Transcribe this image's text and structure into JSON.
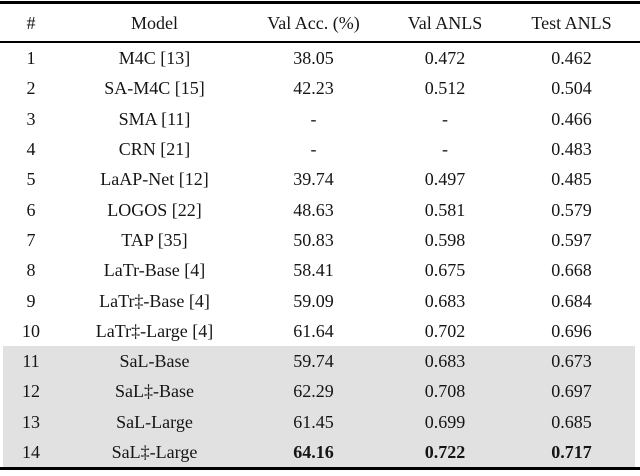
{
  "table": {
    "columns": [
      "#",
      "Model",
      "Val Acc. (%)",
      "Val ANLS",
      "Test ANLS"
    ],
    "rows": [
      {
        "num": "1",
        "model": "M4C [13]",
        "val_acc": "38.05",
        "val_anls": "0.472",
        "test_anls": "0.462",
        "highlight": false,
        "bold_values": false
      },
      {
        "num": "2",
        "model": "SA-M4C [15]",
        "val_acc": "42.23",
        "val_anls": "0.512",
        "test_anls": "0.504",
        "highlight": false,
        "bold_values": false
      },
      {
        "num": "3",
        "model": "SMA [11]",
        "val_acc": "-",
        "val_anls": "-",
        "test_anls": "0.466",
        "highlight": false,
        "bold_values": false
      },
      {
        "num": "4",
        "model": "CRN [21]",
        "val_acc": "-",
        "val_anls": "-",
        "test_anls": "0.483",
        "highlight": false,
        "bold_values": false
      },
      {
        "num": "5",
        "model": "LaAP-Net [12]",
        "val_acc": "39.74",
        "val_anls": "0.497",
        "test_anls": "0.485",
        "highlight": false,
        "bold_values": false
      },
      {
        "num": "6",
        "model": "LOGOS [22]",
        "val_acc": "48.63",
        "val_anls": "0.581",
        "test_anls": "0.579",
        "highlight": false,
        "bold_values": false
      },
      {
        "num": "7",
        "model": "TAP [35]",
        "val_acc": "50.83",
        "val_anls": "0.598",
        "test_anls": "0.597",
        "highlight": false,
        "bold_values": false
      },
      {
        "num": "8",
        "model": "LaTr-Base [4]",
        "val_acc": "58.41",
        "val_anls": "0.675",
        "test_anls": "0.668",
        "highlight": false,
        "bold_values": false
      },
      {
        "num": "9",
        "model": "LaTr‡-Base [4]",
        "val_acc": "59.09",
        "val_anls": "0.683",
        "test_anls": "0.684",
        "highlight": false,
        "bold_values": false
      },
      {
        "num": "10",
        "model": "LaTr‡-Large [4]",
        "val_acc": "61.64",
        "val_anls": "0.702",
        "test_anls": "0.696",
        "highlight": false,
        "bold_values": false
      },
      {
        "num": "11",
        "model": "SaL-Base",
        "val_acc": "59.74",
        "val_anls": "0.683",
        "test_anls": "0.673",
        "highlight": true,
        "bold_values": false
      },
      {
        "num": "12",
        "model": "SaL‡-Base",
        "val_acc": "62.29",
        "val_anls": "0.708",
        "test_anls": "0.697",
        "highlight": true,
        "bold_values": false
      },
      {
        "num": "13",
        "model": "SaL-Large",
        "val_acc": "61.45",
        "val_anls": "0.699",
        "test_anls": "0.685",
        "highlight": true,
        "bold_values": false
      },
      {
        "num": "14",
        "model": "SaL‡-Large",
        "val_acc": "64.16",
        "val_anls": "0.722",
        "test_anls": "0.717",
        "highlight": true,
        "bold_values": true
      }
    ],
    "highlight_color": "#e1e1e1",
    "rule_color": "#000000"
  }
}
